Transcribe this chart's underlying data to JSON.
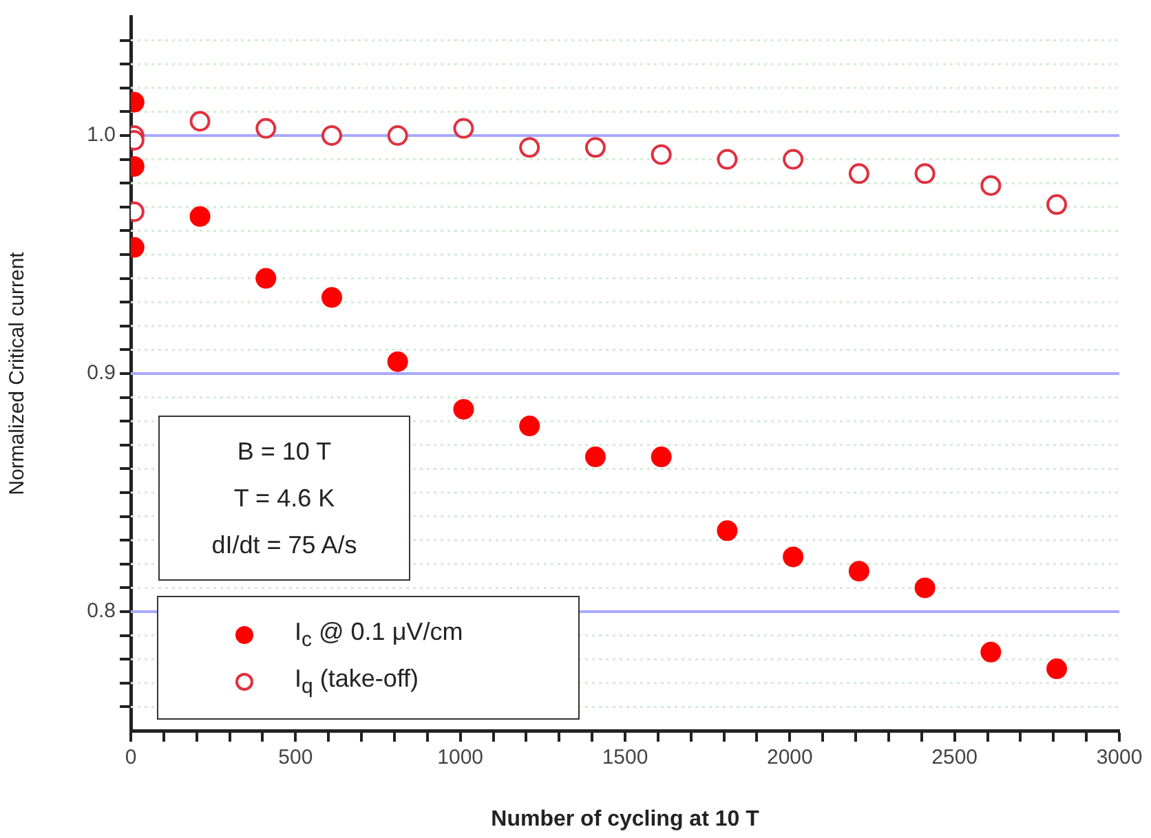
{
  "chart_data": {
    "type": "scatter",
    "xlabel": "Number of cycling at 10 T",
    "ylabel": "Normalized Critical current",
    "annotations": [
      "B = 10 T",
      "T = 4.6 K",
      "dI/dt = 75 A/s"
    ],
    "series": [
      {
        "name": "I$_{c}$ @ 0.1 μV/cm",
        "color": "#ff0000",
        "x": [
          10,
          10,
          10,
          210,
          410,
          610,
          810,
          1010,
          1210,
          1410,
          1610,
          1810,
          2010,
          2210,
          2410,
          2610,
          2810
        ],
        "values": [
          1.014,
          0.987,
          0.953,
          0.966,
          0.94,
          0.932,
          0.905,
          0.885,
          0.878,
          0.865,
          0.865,
          0.834,
          0.823,
          0.817,
          0.81,
          0.783,
          0.776
        ]
      },
      {
        "name": "I$_{q}$ (take-off)",
        "color": "#e03040",
        "x": [
          10,
          10,
          10,
          210,
          410,
          610,
          810,
          1010,
          1210,
          1410,
          1610,
          1810,
          2010,
          2210,
          2410,
          2610,
          2810
        ],
        "values": [
          1.0,
          0.998,
          0.968,
          1.006,
          1.003,
          1.0,
          1.0,
          1.003,
          0.995,
          0.995,
          0.992,
          0.99,
          0.99,
          0.984,
          0.984,
          0.979,
          0.971
        ]
      }
    ],
    "xlim": [
      0,
      3000
    ],
    "xticks": [
      0,
      {
        "value": 100,
        "label": null
      },
      {
        "value": 200,
        "label": null
      },
      {
        "value": 300,
        "label": null
      },
      {
        "value": 400,
        "label": null
      },
      500,
      {
        "value": 600,
        "label": null
      },
      {
        "value": 700,
        "label": null
      },
      {
        "value": 800,
        "label": null
      },
      {
        "value": 900,
        "label": null
      },
      1000,
      {
        "value": 1100,
        "label": null
      },
      {
        "value": 1200,
        "label": null
      },
      {
        "value": 1300,
        "label": null
      },
      {
        "value": 1400,
        "label": null
      },
      1500,
      {
        "value": 1600,
        "label": null
      },
      {
        "value": 1700,
        "label": null
      },
      {
        "value": 1800,
        "label": null
      },
      {
        "value": 1900,
        "label": null
      },
      2000,
      {
        "value": 2100,
        "label": null
      },
      {
        "value": 2200,
        "label": null
      },
      {
        "value": 2300,
        "label": null
      },
      {
        "value": 2400,
        "label": null
      },
      2500,
      {
        "value": 2600,
        "label": null
      },
      {
        "value": 2700,
        "label": null
      },
      {
        "value": 2800,
        "label": null
      },
      {
        "value": 2900,
        "label": null
      },
      3000
    ],
    "ylim": [
      0.75,
      1.05
    ],
    "yticks": [
      {
        "value": 0.76,
        "label": null
      },
      {
        "value": 0.77,
        "label": null
      },
      {
        "value": 0.78,
        "label": null
      },
      {
        "value": 0.79,
        "label": null
      },
      {
        "value": 0.8,
        "label": "0.8"
      },
      {
        "value": 0.81,
        "label": null
      },
      {
        "value": 0.82,
        "label": null
      },
      {
        "value": 0.83,
        "label": null
      },
      {
        "value": 0.84,
        "label": null
      },
      {
        "value": 0.85,
        "label": null
      },
      {
        "value": 0.86,
        "label": null
      },
      {
        "value": 0.87,
        "label": null
      },
      {
        "value": 0.88,
        "label": null
      },
      {
        "value": 0.89,
        "label": null
      },
      {
        "value": 0.9,
        "label": "0.9"
      },
      {
        "value": 0.91,
        "label": null
      },
      {
        "value": 0.92,
        "label": null
      },
      {
        "value": 0.93,
        "label": null
      },
      {
        "value": 0.94,
        "label": null
      },
      {
        "value": 0.95,
        "label": null
      },
      {
        "value": 0.96,
        "label": null
      },
      {
        "value": 0.97,
        "label": null
      },
      {
        "value": 0.98,
        "label": null
      },
      {
        "value": 0.99,
        "label": null
      },
      {
        "value": 1.0,
        "label": "1.0"
      },
      {
        "value": 1.01,
        "label": null
      },
      {
        "value": 1.02,
        "label": null
      },
      {
        "value": 1.03,
        "label": null
      },
      {
        "value": 1.04,
        "label": null
      }
    ],
    "grid": "y",
    "legend": "bottom left",
    "marker": "circle"
  }
}
